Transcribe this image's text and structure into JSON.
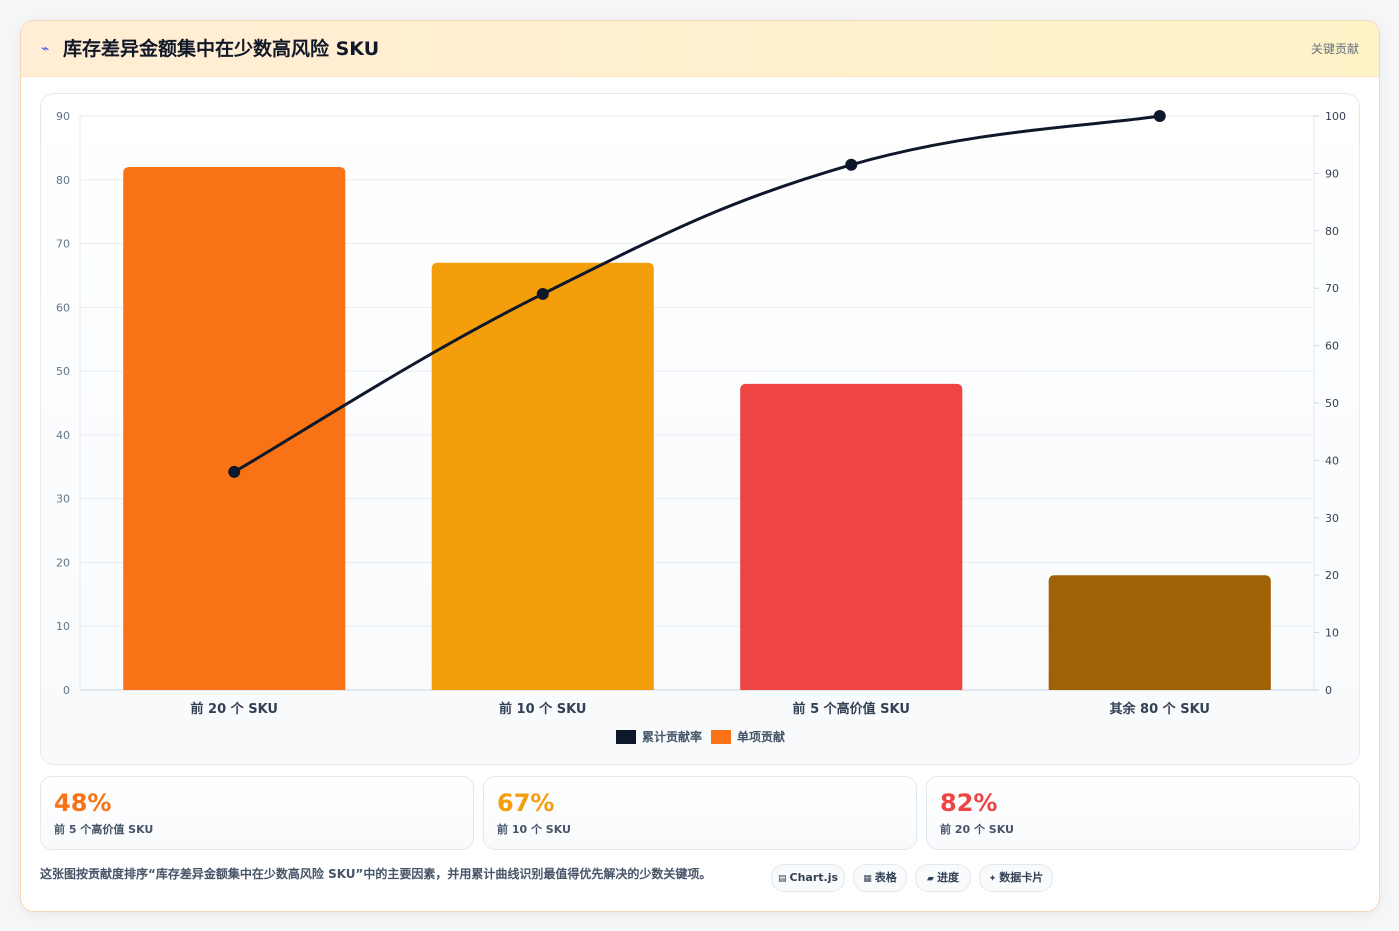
{
  "header": {
    "icon": "lightning-icon",
    "title": "库存差异金额集中在少数高风险 SKU",
    "link": "关键贡献"
  },
  "chart_data": {
    "type": "bar",
    "categories": [
      "前 20 个 SKU",
      "前 10 个 SKU",
      "前 5 个高价值 SKU",
      "其余 80 个 SKU"
    ],
    "series": [
      {
        "name": "单项贡献",
        "type": "bar",
        "axis": "left",
        "values": [
          82,
          67,
          48,
          18
        ],
        "colors": [
          "#f97316",
          "#f59e0b",
          "#ef4444",
          "#a16207"
        ]
      },
      {
        "name": "累计贡献率",
        "type": "line",
        "axis": "right",
        "values": [
          38,
          69,
          91.5,
          100
        ],
        "color": "#0f172a"
      }
    ],
    "y_left": {
      "min": 0,
      "max": 90,
      "ticks": [
        0,
        10,
        20,
        30,
        40,
        50,
        60,
        70,
        80,
        90
      ]
    },
    "y_right": {
      "min": 0,
      "max": 100,
      "ticks": [
        0,
        10,
        20,
        30,
        40,
        50,
        60,
        70,
        80,
        90,
        100
      ]
    },
    "legend": [
      {
        "label": "累计贡献率",
        "color": "#0f172a"
      },
      {
        "label": "单项贡献",
        "color": "#f97316"
      }
    ],
    "legend_position": "bottom",
    "grid": true
  },
  "stats": [
    {
      "value": "48%",
      "label": "前 5 个高价值 SKU",
      "color": "#f97316"
    },
    {
      "value": "67%",
      "label": "前 10 个 SKU",
      "color": "#f59e0b"
    },
    {
      "value": "82%",
      "label": "前 20 个 SKU",
      "color": "#ef4444"
    }
  ],
  "footer": {
    "text": "这张图按贡献度排序“库存差异金额集中在少数高风险 SKU”中的主要因素，并用累计曲线识别最值得优先解决的少数关键项。",
    "chips": [
      {
        "icon": "chart-icon",
        "glyph": "▤",
        "label": "Chart.js"
      },
      {
        "icon": "table-icon",
        "glyph": "▦",
        "label": "表格"
      },
      {
        "icon": "progress-icon",
        "glyph": "▰",
        "label": "进度"
      },
      {
        "icon": "sparkle-icon",
        "glyph": "✦",
        "label": "数据卡片"
      }
    ]
  }
}
